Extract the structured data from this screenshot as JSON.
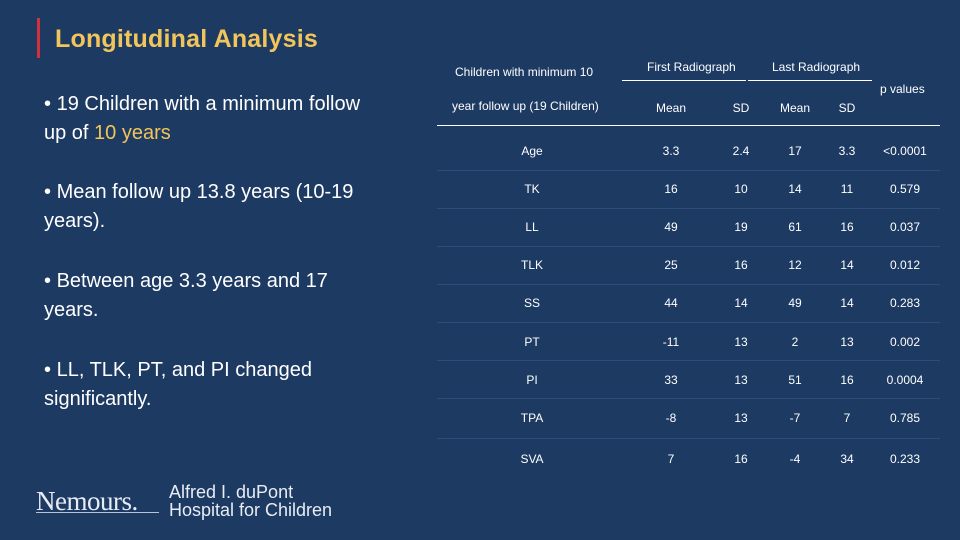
{
  "title": "Longitudinal Analysis",
  "bullets": [
    {
      "marker": "•",
      "text": "19 Children with a minimum follow up of ",
      "highlight": "10 years"
    },
    {
      "marker": "•",
      "text": "Mean follow up 13.8 years (10-19 years)."
    },
    {
      "marker": "•",
      "text": "Between age 3.3 years and 17 years."
    },
    {
      "marker": "•",
      "text": "LL, TLK, PT, and PI changed significantly."
    }
  ],
  "table": {
    "group_label_line1": "Children with minimum 10",
    "group_label_line2": "year follow up (19 Children)",
    "first_radiograph": "First Radiograph",
    "last_radiograph": "Last Radiograph",
    "p_values": "p values",
    "col_mean": "Mean",
    "col_sd": "SD",
    "rows": [
      {
        "label": "Age",
        "mean1": "3.3",
        "sd1": "2.4",
        "mean2": "17",
        "sd2": "3.3",
        "p": "<0.0001"
      },
      {
        "label": "TK",
        "mean1": "16",
        "sd1": "10",
        "mean2": "14",
        "sd2": "11",
        "p": "0.579"
      },
      {
        "label": "LL",
        "mean1": "49",
        "sd1": "19",
        "mean2": "61",
        "sd2": "16",
        "p": "0.037"
      },
      {
        "label": "TLK",
        "mean1": "25",
        "sd1": "16",
        "mean2": "12",
        "sd2": "14",
        "p": "0.012"
      },
      {
        "label": "SS",
        "mean1": "44",
        "sd1": "14",
        "mean2": "49",
        "sd2": "14",
        "p": "0.283"
      },
      {
        "label": "PT",
        "mean1": "-11",
        "sd1": "13",
        "mean2": "2",
        "sd2": "13",
        "p": "0.002"
      },
      {
        "label": "PI",
        "mean1": "33",
        "sd1": "13",
        "mean2": "51",
        "sd2": "16",
        "p": "0.0004"
      },
      {
        "label": "TPA",
        "mean1": "-8",
        "sd1": "13",
        "mean2": "-7",
        "sd2": "7",
        "p": "0.785"
      },
      {
        "label": "SVA",
        "mean1": "7",
        "sd1": "16",
        "mean2": "-4",
        "sd2": "34",
        "p": "0.233"
      }
    ]
  },
  "logo": {
    "brand": "Nemours.",
    "line1": "Alfred I. duPont",
    "line2": "Hospital for Children"
  },
  "colors": {
    "background": "#1d3a63",
    "accent": "#f2c55a",
    "title_bar": "#d2303a"
  }
}
